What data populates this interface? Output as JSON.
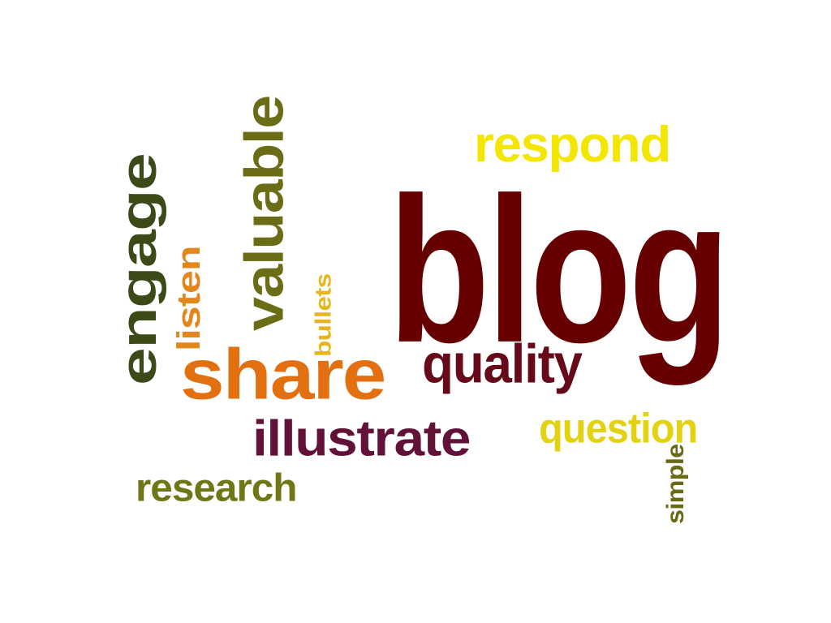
{
  "words": {
    "blog": {
      "text": "blog",
      "color": "#660000"
    },
    "respond": {
      "text": "respond",
      "color": "#f3e600"
    },
    "quality": {
      "text": "quality",
      "color": "#660a1a"
    },
    "share": {
      "text": "share",
      "color": "#e26f10"
    },
    "illustrate": {
      "text": "illustrate",
      "color": "#621238"
    },
    "engage": {
      "text": "engage",
      "color": "#3b4a17"
    },
    "valuable": {
      "text": "valuable",
      "color": "#6b6c16"
    },
    "listen": {
      "text": "listen",
      "color": "#e3861c"
    },
    "bullets": {
      "text": "bullets",
      "color": "#e8b51f"
    },
    "question": {
      "text": "question",
      "color": "#e3d211"
    },
    "research": {
      "text": "research",
      "color": "#6e7616"
    },
    "simple": {
      "text": "simple",
      "color": "#6a6a16"
    }
  }
}
